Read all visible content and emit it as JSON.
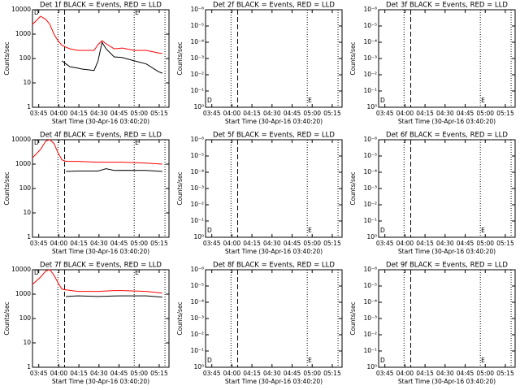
{
  "chart_data": [
    {
      "type": "line",
      "title": "Det 1f BLACK = Events, RED = LLD",
      "ylabel": "Counts/sec",
      "xlabel": "Start Time (30-Apr-16 03:40:20)",
      "log_y": true,
      "xlim": [
        0,
        102
      ],
      "xticks": [
        {
          "value": 4.67,
          "label": "03:45"
        },
        {
          "value": 19.67,
          "label": "04:00"
        },
        {
          "value": 34.67,
          "label": "04:15"
        },
        {
          "value": 49.67,
          "label": "04:30"
        },
        {
          "value": 64.67,
          "label": "04:45"
        },
        {
          "value": 79.67,
          "label": "05:00"
        },
        {
          "value": 94.67,
          "label": "05:15"
        }
      ],
      "ylim": [
        1,
        10000
      ],
      "yticks": [
        1,
        10,
        100,
        1000,
        10000
      ],
      "vlines": [
        {
          "x": 19,
          "style": "dotted"
        },
        {
          "x": 24,
          "style": "dashed"
        },
        {
          "x": 76,
          "style": "dotted"
        },
        {
          "x": 99,
          "style": "dotted"
        }
      ],
      "markers": [
        {
          "label": "D",
          "x": 3
        },
        {
          "label": "E",
          "x": 78
        }
      ],
      "marker_position": "top",
      "x": [
        0,
        6,
        10,
        13,
        16,
        19,
        22,
        25,
        28,
        34,
        37,
        43,
        46,
        49,
        52,
        55,
        61,
        67,
        76,
        85,
        94,
        97
      ],
      "series": [
        {
          "name": "LLD",
          "color": "#ff0000",
          "values": [
            2500,
            5400,
            4000,
            2500,
            1000,
            540,
            350,
            290,
            250,
            215,
            215,
            215,
            215,
            370,
            540,
            400,
            250,
            270,
            215,
            215,
            170,
            160
          ]
        },
        {
          "name": "Events",
          "color": "#000000",
          "values": [
            null,
            null,
            null,
            null,
            null,
            null,
            80,
            60,
            46,
            40,
            37,
            34,
            32,
            80,
            460,
            250,
            117,
            110,
            80,
            60,
            29,
            25
          ]
        }
      ]
    },
    {
      "type": "line",
      "title": "Det 2f BLACK = Events, RED = LLD",
      "ylabel": "Counts/sec",
      "xlabel": "Start Time (30-Apr-16 03:40:20)",
      "log_y": true,
      "xlim": [
        0,
        102
      ],
      "xticks": [
        {
          "value": 4.67,
          "label": "03:45"
        },
        {
          "value": 19.67,
          "label": "04:00"
        },
        {
          "value": 34.67,
          "label": "04:15"
        },
        {
          "value": 49.67,
          "label": "04:30"
        },
        {
          "value": 64.67,
          "label": "04:45"
        },
        {
          "value": 79.67,
          "label": "05:00"
        },
        {
          "value": 94.67,
          "label": "05:15"
        }
      ],
      "ylim": [
        1,
        1e-06
      ],
      "yticks": [
        {
          "value": 1e-06,
          "label": "10⁻⁶"
        },
        {
          "value": 1e-05,
          "label": "10⁻⁵"
        },
        {
          "value": 0.0001,
          "label": "10⁻⁴"
        },
        {
          "value": 0.001,
          "label": "10⁻³"
        },
        {
          "value": 0.01,
          "label": "10⁻²"
        },
        {
          "value": 0.1,
          "label": "10⁻¹"
        },
        {
          "value": 1,
          "label": "10⁰"
        }
      ],
      "vlines": [
        {
          "x": 19,
          "style": "dotted"
        },
        {
          "x": 24,
          "style": "dashed"
        },
        {
          "x": 76,
          "style": "dotted"
        },
        {
          "x": 99,
          "style": "dotted"
        }
      ],
      "markers": [
        {
          "label": "D",
          "x": 3
        },
        {
          "label": "E",
          "x": 78
        }
      ],
      "marker_position": "bottom"
    },
    {
      "type": "line",
      "title": "Det 3f BLACK = Events, RED = LLD",
      "ylabel": "Counts/sec",
      "xlabel": "Start Time (30-Apr-16 03:40:20)",
      "log_y": true,
      "xlim": [
        0,
        102
      ],
      "xticks": [
        {
          "value": 4.67,
          "label": "03:45"
        },
        {
          "value": 19.67,
          "label": "04:00"
        },
        {
          "value": 34.67,
          "label": "04:15"
        },
        {
          "value": 49.67,
          "label": "04:30"
        },
        {
          "value": 64.67,
          "label": "04:45"
        },
        {
          "value": 79.67,
          "label": "05:00"
        },
        {
          "value": 94.67,
          "label": "05:15"
        }
      ],
      "ylim": [
        1,
        1e-06
      ],
      "yticks": [
        {
          "value": 1e-06,
          "label": "10⁻⁶"
        },
        {
          "value": 1e-05,
          "label": "10⁻⁵"
        },
        {
          "value": 0.0001,
          "label": "10⁻⁴"
        },
        {
          "value": 0.001,
          "label": "10⁻³"
        },
        {
          "value": 0.01,
          "label": "10⁻²"
        },
        {
          "value": 0.1,
          "label": "10⁻¹"
        },
        {
          "value": 1,
          "label": "10⁰"
        }
      ],
      "vlines": [
        {
          "x": 19,
          "style": "dotted"
        },
        {
          "x": 24,
          "style": "dashed"
        },
        {
          "x": 76,
          "style": "dotted"
        },
        {
          "x": 99,
          "style": "dotted"
        }
      ],
      "markers": [
        {
          "label": "D",
          "x": 3
        },
        {
          "label": "E",
          "x": 78
        }
      ],
      "marker_position": "bottom"
    },
    {
      "type": "line",
      "title": "Det 4f BLACK = Events, RED = LLD",
      "ylabel": "Counts/sec",
      "xlabel": "Start Time (30-Apr-16 03:40:20)",
      "log_y": true,
      "xlim": [
        0,
        102
      ],
      "xticks": [
        {
          "value": 4.67,
          "label": "03:45"
        },
        {
          "value": 19.67,
          "label": "04:00"
        },
        {
          "value": 34.67,
          "label": "04:15"
        },
        {
          "value": 49.67,
          "label": "04:30"
        },
        {
          "value": 64.67,
          "label": "04:45"
        },
        {
          "value": 79.67,
          "label": "05:00"
        },
        {
          "value": 94.67,
          "label": "05:15"
        }
      ],
      "ylim": [
        1,
        10000
      ],
      "yticks": [
        1,
        10,
        100,
        1000,
        10000
      ],
      "vlines": [
        {
          "x": 19,
          "style": "dotted"
        },
        {
          "x": 24,
          "style": "dashed"
        },
        {
          "x": 76,
          "style": "dotted"
        },
        {
          "x": 99,
          "style": "dotted"
        }
      ],
      "markers": [
        {
          "label": "D",
          "x": 3
        },
        {
          "label": "E",
          "x": 78
        }
      ],
      "marker_position": "top",
      "x": [
        0,
        6,
        10,
        13,
        16,
        19,
        22,
        25,
        34,
        49,
        55,
        61,
        67,
        85,
        97
      ],
      "series": [
        {
          "name": "LLD",
          "color": "#ff0000",
          "values": [
            1800,
            4000,
            9000,
            10000,
            7000,
            3000,
            1500,
            1300,
            1300,
            1200,
            1200,
            1200,
            1200,
            1100,
            1000
          ]
        },
        {
          "name": "Events",
          "color": "#000000",
          "values": [
            null,
            null,
            null,
            null,
            null,
            null,
            null,
            500,
            520,
            520,
            650,
            550,
            560,
            550,
            500
          ]
        }
      ]
    },
    {
      "type": "line",
      "title": "Det 5f BLACK = Events, RED = LLD",
      "ylabel": "Counts/sec",
      "xlabel": "Start Time (30-Apr-16 03:40:20)",
      "log_y": true,
      "xlim": [
        0,
        102
      ],
      "xticks": [
        {
          "value": 4.67,
          "label": "03:45"
        },
        {
          "value": 19.67,
          "label": "04:00"
        },
        {
          "value": 34.67,
          "label": "04:15"
        },
        {
          "value": 49.67,
          "label": "04:30"
        },
        {
          "value": 64.67,
          "label": "04:45"
        },
        {
          "value": 79.67,
          "label": "05:00"
        },
        {
          "value": 94.67,
          "label": "05:15"
        }
      ],
      "ylim": [
        1,
        1e-06
      ],
      "yticks": [
        {
          "value": 1e-06,
          "label": "10⁻⁶"
        },
        {
          "value": 1e-05,
          "label": "10⁻⁵"
        },
        {
          "value": 0.0001,
          "label": "10⁻⁴"
        },
        {
          "value": 0.001,
          "label": "10⁻³"
        },
        {
          "value": 0.01,
          "label": "10⁻²"
        },
        {
          "value": 0.1,
          "label": "10⁻¹"
        },
        {
          "value": 1,
          "label": "10⁰"
        }
      ],
      "vlines": [
        {
          "x": 19,
          "style": "dotted"
        },
        {
          "x": 24,
          "style": "dashed"
        },
        {
          "x": 76,
          "style": "dotted"
        },
        {
          "x": 99,
          "style": "dotted"
        }
      ],
      "markers": [
        {
          "label": "D",
          "x": 3
        },
        {
          "label": "E",
          "x": 78
        }
      ],
      "marker_position": "bottom"
    },
    {
      "type": "line",
      "title": "Det 6f BLACK = Events, RED = LLD",
      "ylabel": "Counts/sec",
      "xlabel": "Start Time (30-Apr-16 03:40:20)",
      "log_y": true,
      "xlim": [
        0,
        102
      ],
      "xticks": [
        {
          "value": 4.67,
          "label": "03:45"
        },
        {
          "value": 19.67,
          "label": "04:00"
        },
        {
          "value": 34.67,
          "label": "04:15"
        },
        {
          "value": 49.67,
          "label": "04:30"
        },
        {
          "value": 64.67,
          "label": "04:45"
        },
        {
          "value": 79.67,
          "label": "05:00"
        },
        {
          "value": 94.67,
          "label": "05:15"
        }
      ],
      "ylim": [
        1,
        1e-06
      ],
      "yticks": [
        {
          "value": 1e-06,
          "label": "10⁻⁶"
        },
        {
          "value": 1e-05,
          "label": "10⁻⁵"
        },
        {
          "value": 0.0001,
          "label": "10⁻⁴"
        },
        {
          "value": 0.001,
          "label": "10⁻³"
        },
        {
          "value": 0.01,
          "label": "10⁻²"
        },
        {
          "value": 0.1,
          "label": "10⁻¹"
        },
        {
          "value": 1,
          "label": "10⁰"
        }
      ],
      "vlines": [
        {
          "x": 19,
          "style": "dotted"
        },
        {
          "x": 24,
          "style": "dashed"
        },
        {
          "x": 76,
          "style": "dotted"
        },
        {
          "x": 99,
          "style": "dotted"
        }
      ],
      "markers": [
        {
          "label": "D",
          "x": 3
        },
        {
          "label": "E",
          "x": 78
        }
      ],
      "marker_position": "bottom"
    },
    {
      "type": "line",
      "title": "Det 7f BLACK = Events, RED = LLD",
      "ylabel": "Counts/sec",
      "xlabel": "Start Time (30-Apr-16 03:40:20)",
      "log_y": true,
      "xlim": [
        0,
        102
      ],
      "xticks": [
        {
          "value": 4.67,
          "label": "03:45"
        },
        {
          "value": 19.67,
          "label": "04:00"
        },
        {
          "value": 34.67,
          "label": "04:15"
        },
        {
          "value": 49.67,
          "label": "04:30"
        },
        {
          "value": 64.67,
          "label": "04:45"
        },
        {
          "value": 79.67,
          "label": "05:00"
        },
        {
          "value": 94.67,
          "label": "05:15"
        }
      ],
      "ylim": [
        1,
        10000
      ],
      "yticks": [
        1,
        10,
        100,
        1000,
        10000
      ],
      "vlines": [
        {
          "x": 19,
          "style": "dotted"
        },
        {
          "x": 24,
          "style": "dashed"
        },
        {
          "x": 76,
          "style": "dotted"
        },
        {
          "x": 99,
          "style": "dotted"
        }
      ],
      "markers": [
        {
          "label": "D",
          "x": 3
        },
        {
          "label": "E",
          "x": 78
        }
      ],
      "marker_position": "top",
      "x": [
        0,
        6,
        10,
        13,
        16,
        19,
        22,
        25,
        34,
        49,
        55,
        61,
        67,
        85,
        97
      ],
      "series": [
        {
          "name": "LLD",
          "color": "#ff0000",
          "values": [
            2500,
            5000,
            9000,
            10000,
            6000,
            3000,
            1600,
            1500,
            1300,
            1300,
            1350,
            1400,
            1400,
            1300,
            1100
          ]
        },
        {
          "name": "Events",
          "color": "#000000",
          "values": [
            null,
            null,
            null,
            null,
            null,
            null,
            null,
            800,
            850,
            800,
            820,
            840,
            850,
            850,
            750
          ]
        }
      ]
    },
    {
      "type": "line",
      "title": "Det 8f BLACK = Events, RED = LLD",
      "ylabel": "Counts/sec",
      "xlabel": "Start Time (30-Apr-16 03:40:20)",
      "log_y": true,
      "xlim": [
        0,
        102
      ],
      "xticks": [
        {
          "value": 4.67,
          "label": "03:45"
        },
        {
          "value": 19.67,
          "label": "04:00"
        },
        {
          "value": 34.67,
          "label": "04:15"
        },
        {
          "value": 49.67,
          "label": "04:30"
        },
        {
          "value": 64.67,
          "label": "04:45"
        },
        {
          "value": 79.67,
          "label": "05:00"
        },
        {
          "value": 94.67,
          "label": "05:15"
        }
      ],
      "ylim": [
        1,
        1e-06
      ],
      "yticks": [
        {
          "value": 1e-06,
          "label": "10⁻⁶"
        },
        {
          "value": 1e-05,
          "label": "10⁻⁵"
        },
        {
          "value": 0.0001,
          "label": "10⁻⁴"
        },
        {
          "value": 0.001,
          "label": "10⁻³"
        },
        {
          "value": 0.01,
          "label": "10⁻²"
        },
        {
          "value": 0.1,
          "label": "10⁻¹"
        },
        {
          "value": 1,
          "label": "10⁰"
        }
      ],
      "vlines": [
        {
          "x": 19,
          "style": "dotted"
        },
        {
          "x": 24,
          "style": "dashed"
        },
        {
          "x": 76,
          "style": "dotted"
        },
        {
          "x": 99,
          "style": "dotted"
        }
      ],
      "markers": [
        {
          "label": "D",
          "x": 3
        },
        {
          "label": "E",
          "x": 78
        }
      ],
      "marker_position": "bottom"
    },
    {
      "type": "line",
      "title": "Det 9f BLACK = Events, RED = LLD",
      "ylabel": "Counts/sec",
      "xlabel": "Start Time (30-Apr-16 03:40:20)",
      "log_y": true,
      "xlim": [
        0,
        102
      ],
      "xticks": [
        {
          "value": 4.67,
          "label": "03:45"
        },
        {
          "value": 19.67,
          "label": "04:00"
        },
        {
          "value": 34.67,
          "label": "04:15"
        },
        {
          "value": 49.67,
          "label": "04:30"
        },
        {
          "value": 64.67,
          "label": "04:45"
        },
        {
          "value": 79.67,
          "label": "05:00"
        },
        {
          "value": 94.67,
          "label": "05:15"
        }
      ],
      "ylim": [
        1,
        1e-06
      ],
      "yticks": [
        {
          "value": 1e-06,
          "label": "10⁻⁶"
        },
        {
          "value": 1e-05,
          "label": "10⁻⁵"
        },
        {
          "value": 0.0001,
          "label": "10⁻⁴"
        },
        {
          "value": 0.001,
          "label": "10⁻³"
        },
        {
          "value": 0.01,
          "label": "10⁻²"
        },
        {
          "value": 0.1,
          "label": "10⁻¹"
        },
        {
          "value": 1,
          "label": "10⁰"
        }
      ],
      "vlines": [
        {
          "x": 19,
          "style": "dotted"
        },
        {
          "x": 24,
          "style": "dashed"
        },
        {
          "x": 76,
          "style": "dotted"
        },
        {
          "x": 99,
          "style": "dotted"
        }
      ],
      "markers": [
        {
          "label": "D",
          "x": 3
        },
        {
          "label": "E",
          "x": 78
        }
      ],
      "marker_position": "bottom"
    }
  ]
}
